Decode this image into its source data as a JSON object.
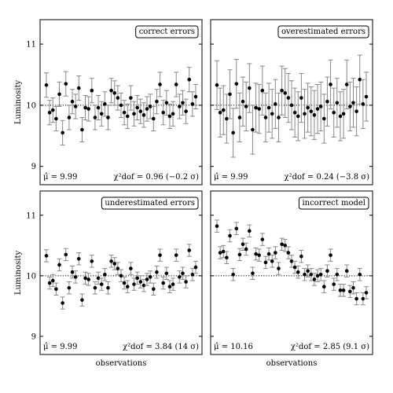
{
  "chart_data": [
    {
      "type": "scatter",
      "title": "correct errors",
      "mu_text": "μ̂ = 9.99",
      "chi_text": "χ²dof = 0.96 (−0.2 σ)",
      "ylabel": "Luminosity",
      "xlabel": "",
      "ylim": [
        8.7,
        11.4
      ],
      "yticks": [
        9,
        10,
        11
      ],
      "reference_line": 10,
      "series": [
        {
          "y": [
            10.33,
            9.88,
            9.92,
            9.78,
            10.18,
            9.55,
            10.35,
            9.8,
            10.06,
            9.98,
            10.28,
            9.6,
            9.96,
            9.94,
            10.24,
            9.8,
            9.96,
            9.86,
            10.02,
            9.8,
            10.24,
            10.2,
            10.12,
            10.0,
            9.88,
            9.82,
            10.12,
            9.86,
            9.96,
            9.9,
            9.84,
            9.94,
            9.98,
            9.78,
            10.06,
            10.34,
            9.88,
            10.04,
            9.82,
            9.86,
            10.34,
            9.98,
            10.04,
            9.9,
            10.42,
            10.02,
            10.14
          ],
          "err": 0.2
        }
      ]
    },
    {
      "type": "scatter",
      "title": "overestimated errors",
      "mu_text": "μ̂ = 9.99",
      "chi_text": "χ²dof = 0.24 (−3.8 σ)",
      "ylabel": "",
      "xlabel": "",
      "ylim": [
        8.7,
        11.4
      ],
      "yticks": [
        9,
        10,
        11
      ],
      "reference_line": 10,
      "series": [
        {
          "y": [
            10.33,
            9.88,
            9.92,
            9.78,
            10.18,
            9.55,
            10.35,
            9.8,
            10.06,
            9.98,
            10.28,
            9.6,
            9.96,
            9.94,
            10.24,
            9.8,
            9.96,
            9.86,
            10.02,
            9.8,
            10.24,
            10.2,
            10.12,
            10.0,
            9.88,
            9.82,
            10.12,
            9.86,
            9.96,
            9.9,
            9.84,
            9.94,
            9.98,
            9.78,
            10.06,
            10.34,
            9.88,
            10.04,
            9.82,
            9.86,
            10.34,
            9.98,
            10.04,
            9.9,
            10.42,
            10.02,
            10.14
          ],
          "err": 0.4
        }
      ]
    },
    {
      "type": "scatter",
      "title": "underestimated errors",
      "mu_text": "μ̂ = 9.99",
      "chi_text": "χ²dof = 3.84 (14 σ)",
      "ylabel": "Luminosity",
      "xlabel": "observations",
      "ylim": [
        8.7,
        11.4
      ],
      "yticks": [
        9,
        10,
        11
      ],
      "reference_line": 10,
      "series": [
        {
          "y": [
            10.33,
            9.88,
            9.92,
            9.78,
            10.18,
            9.55,
            10.35,
            9.8,
            10.06,
            9.98,
            10.28,
            9.6,
            9.96,
            9.94,
            10.24,
            9.8,
            9.96,
            9.86,
            10.02,
            9.8,
            10.24,
            10.2,
            10.12,
            10.0,
            9.88,
            9.82,
            10.12,
            9.86,
            9.96,
            9.9,
            9.84,
            9.94,
            9.98,
            9.78,
            10.06,
            10.34,
            9.88,
            10.04,
            9.82,
            9.86,
            10.34,
            9.98,
            10.04,
            9.9,
            10.42,
            10.02,
            10.14
          ],
          "err": 0.1
        }
      ]
    },
    {
      "type": "scatter",
      "title": "incorrect model",
      "mu_text": "μ̂ = 10.16",
      "chi_text": "χ²dof = 2.85 (9.1 σ)",
      "ylabel": "",
      "xlabel": "observations",
      "ylim": [
        8.7,
        11.4
      ],
      "yticks": [
        9,
        10,
        11
      ],
      "reference_line": 10,
      "series": [
        {
          "y": [
            10.82,
            10.38,
            10.4,
            10.3,
            10.66,
            10.02,
            10.78,
            10.35,
            10.52,
            10.44,
            10.74,
            10.04,
            10.36,
            10.34,
            10.6,
            10.22,
            10.36,
            10.24,
            10.38,
            10.12,
            10.52,
            10.5,
            10.38,
            10.24,
            10.14,
            10.06,
            10.32,
            10.02,
            10.08,
            10.02,
            9.94,
            10.0,
            10.02,
            9.82,
            10.08,
            10.34,
            9.86,
            10.02,
            9.76,
            9.76,
            10.08,
            9.74,
            9.8,
            9.62,
            10.02,
            9.62,
            9.72
          ],
          "err": 0.1
        }
      ]
    }
  ]
}
